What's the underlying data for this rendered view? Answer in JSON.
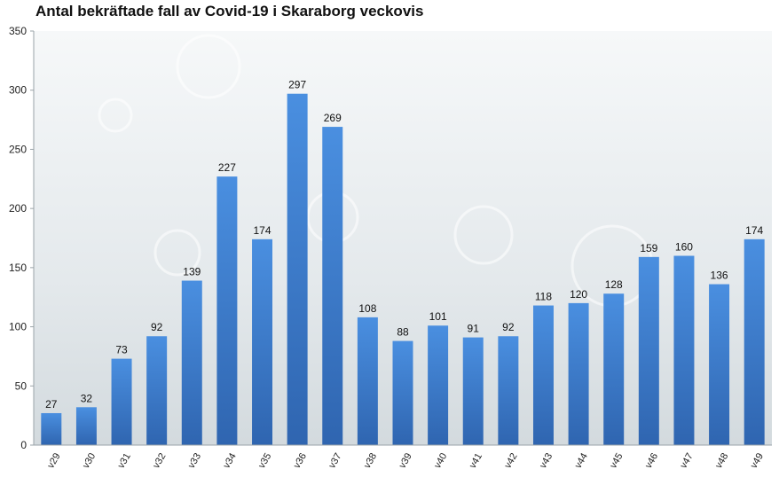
{
  "chart_data": {
    "type": "bar",
    "title": "Antal bekräftade fall av Covid-19 i Skaraborg veckovis",
    "xlabel": "",
    "ylabel": "",
    "ylim": [
      0,
      350
    ],
    "yticks": [
      0,
      50,
      100,
      150,
      200,
      250,
      300,
      350
    ],
    "grid": false,
    "legend": "none",
    "categories": [
      "v29",
      "v30",
      "v31",
      "v32",
      "v33",
      "v34",
      "v35",
      "v36",
      "v37",
      "v38",
      "v39",
      "v40",
      "v41",
      "v42",
      "v43",
      "v44",
      "v45",
      "v46",
      "v47",
      "v48",
      "v49"
    ],
    "values": [
      27,
      32,
      73,
      92,
      139,
      227,
      174,
      297,
      269,
      108,
      88,
      101,
      91,
      92,
      118,
      120,
      128,
      159,
      160,
      136,
      174
    ],
    "colors": {
      "bar_top": "#4a8fe0",
      "bar_bottom": "#2f65b0",
      "plot_bg_light": "#f4f6f7",
      "plot_bg_dark": "#d6dce0"
    }
  }
}
